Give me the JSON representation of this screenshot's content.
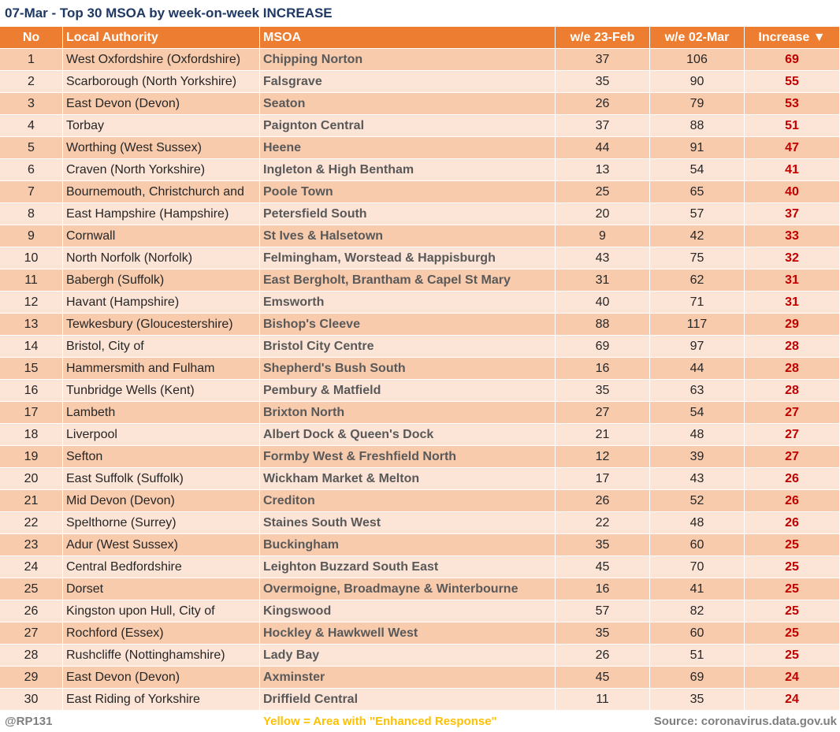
{
  "title": "07-Mar - Top 30 MSOA by week-on-week INCREASE",
  "table": {
    "columns": [
      "No",
      "Local Authority",
      "MSOA",
      "w/e 23-Feb",
      "w/e 02-Mar",
      "Increase ▼"
    ],
    "rows": [
      [
        1,
        "West Oxfordshire (Oxfordshire)",
        "Chipping Norton",
        37,
        106,
        69
      ],
      [
        2,
        "Scarborough (North Yorkshire)",
        "Falsgrave",
        35,
        90,
        55
      ],
      [
        3,
        "East Devon (Devon)",
        "Seaton",
        26,
        79,
        53
      ],
      [
        4,
        "Torbay",
        "Paignton Central",
        37,
        88,
        51
      ],
      [
        5,
        "Worthing (West Sussex)",
        "Heene",
        44,
        91,
        47
      ],
      [
        6,
        "Craven (North Yorkshire)",
        "Ingleton & High Bentham",
        13,
        54,
        41
      ],
      [
        7,
        "Bournemouth, Christchurch and",
        "Poole Town",
        25,
        65,
        40
      ],
      [
        8,
        "East Hampshire (Hampshire)",
        "Petersfield South",
        20,
        57,
        37
      ],
      [
        9,
        "Cornwall",
        "St Ives & Halsetown",
        9,
        42,
        33
      ],
      [
        10,
        "North Norfolk (Norfolk)",
        "Felmingham, Worstead & Happisburgh",
        43,
        75,
        32
      ],
      [
        11,
        "Babergh (Suffolk)",
        "East Bergholt, Brantham & Capel St Mary",
        31,
        62,
        31
      ],
      [
        12,
        "Havant (Hampshire)",
        "Emsworth",
        40,
        71,
        31
      ],
      [
        13,
        "Tewkesbury (Gloucestershire)",
        "Bishop's Cleeve",
        88,
        117,
        29
      ],
      [
        14,
        "Bristol, City of",
        "Bristol City Centre",
        69,
        97,
        28
      ],
      [
        15,
        "Hammersmith and Fulham",
        "Shepherd's Bush South",
        16,
        44,
        28
      ],
      [
        16,
        "Tunbridge Wells (Kent)",
        "Pembury & Matfield",
        35,
        63,
        28
      ],
      [
        17,
        "Lambeth",
        "Brixton North",
        27,
        54,
        27
      ],
      [
        18,
        "Liverpool",
        "Albert Dock & Queen's Dock",
        21,
        48,
        27
      ],
      [
        19,
        "Sefton",
        "Formby West & Freshfield North",
        12,
        39,
        27
      ],
      [
        20,
        "East Suffolk (Suffolk)",
        "Wickham Market & Melton",
        17,
        43,
        26
      ],
      [
        21,
        "Mid Devon (Devon)",
        "Crediton",
        26,
        52,
        26
      ],
      [
        22,
        "Spelthorne (Surrey)",
        "Staines South West",
        22,
        48,
        26
      ],
      [
        23,
        "Adur (West Sussex)",
        "Buckingham",
        35,
        60,
        25
      ],
      [
        24,
        "Central Bedfordshire",
        "Leighton Buzzard South East",
        45,
        70,
        25
      ],
      [
        25,
        "Dorset",
        "Overmoigne, Broadmayne & Winterbourne",
        16,
        41,
        25
      ],
      [
        26,
        "Kingston upon Hull, City of",
        "Kingswood",
        57,
        82,
        25
      ],
      [
        27,
        "Rochford (Essex)",
        "Hockley & Hawkwell West",
        35,
        60,
        25
      ],
      [
        28,
        "Rushcliffe (Nottinghamshire)",
        "Lady Bay",
        26,
        51,
        25
      ],
      [
        29,
        "East Devon (Devon)",
        "Axminster",
        45,
        69,
        24
      ],
      [
        30,
        "East Riding of Yorkshire",
        "Driffield Central",
        11,
        35,
        24
      ]
    ]
  },
  "footer": {
    "credit": "@RP131",
    "note": "Yellow = Area with \"Enhanced Response\"",
    "source": "Source: coronavirus.data.gov.uk"
  }
}
